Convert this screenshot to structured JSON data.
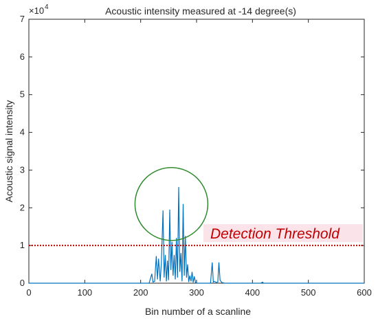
{
  "chart_data": {
    "type": "line",
    "title": "Acoustic intensity measured at -14 degree(s)",
    "xlabel": "Bin number of a scanline",
    "ylabel": "Acoustic signal intensity",
    "y_exponent_label": "×10",
    "y_exponent_power": "4",
    "xlim": [
      0,
      600
    ],
    "ylim": [
      0,
      70000
    ],
    "x_ticks": [
      0,
      100,
      200,
      300,
      400,
      500,
      600
    ],
    "y_ticks": [
      0,
      1,
      2,
      3,
      4,
      5,
      6,
      7
    ],
    "y_tick_scale": 10000,
    "grid": false,
    "series": [
      {
        "color": "#0072bd",
        "x": [
          0,
          215,
          220,
          222,
          225,
          228,
          230,
          232,
          235,
          237,
          240,
          242,
          244,
          246,
          248,
          250,
          252,
          254,
          256,
          258,
          260,
          262,
          264,
          266,
          268,
          270,
          272,
          274,
          276,
          278,
          280,
          282,
          284,
          286,
          288,
          290,
          292,
          294,
          296,
          298,
          300,
          305,
          325,
          328,
          330,
          332,
          335,
          338,
          340,
          342,
          345,
          350,
          400,
          415,
          418,
          420,
          600
        ],
        "y": [
          0,
          0,
          2500,
          300,
          500,
          7200,
          1000,
          6500,
          500,
          5500,
          19300,
          1500,
          7500,
          500,
          6000,
          800,
          19500,
          3500,
          11000,
          2000,
          7500,
          1000,
          12000,
          1500,
          25500,
          3000,
          8000,
          500,
          21000,
          2000,
          12500,
          1500,
          5000,
          300,
          2000,
          500,
          3000,
          200,
          1800,
          200,
          0,
          0,
          0,
          5500,
          300,
          500,
          200,
          300,
          5500,
          800,
          200,
          0,
          0,
          0,
          300,
          0,
          0
        ]
      }
    ],
    "threshold": {
      "value": 10000,
      "label": "Detection Threshold",
      "color": "#c00000"
    },
    "highlight_circle": {
      "center": [
        255,
        21000
      ],
      "color": "#2e8b2e"
    }
  }
}
